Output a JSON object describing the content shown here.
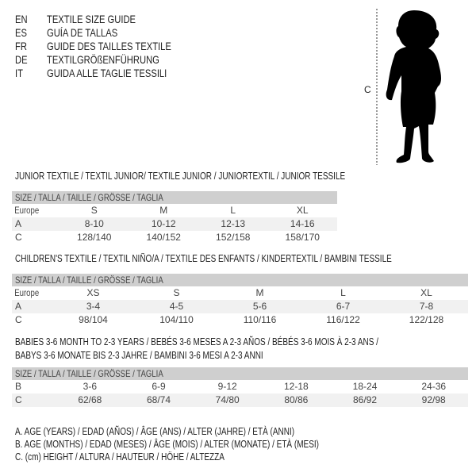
{
  "languages": [
    {
      "code": "EN",
      "name": "TEXTILE SIZE GUIDE"
    },
    {
      "code": "ES",
      "name": "GUÍA DE TALLAS"
    },
    {
      "code": "FR",
      "name": "GUIDE DES TAILLES TEXTILE"
    },
    {
      "code": "DE",
      "name": "TEXTILGRÖßENFÜHRUNG"
    },
    {
      "code": "IT",
      "name": "GUIDA ALLE TAGLIE TESSILI"
    }
  ],
  "figure": {
    "measure_label": "C"
  },
  "junior": {
    "title": "JUNIOR TEXTILE / TEXTIL JUNIOR/ TEXTILE JUNIOR / JUNIORTEXTIL / JUNIOR TESSILE",
    "header": "SIZE / TALLA / TAILLE / GRÖSSE / TAGLIA",
    "rows": [
      {
        "label": "Europe",
        "cells": [
          "S",
          "M",
          "L",
          "XL"
        ]
      },
      {
        "label": "A",
        "cells": [
          "8-10",
          "10-12",
          "12-13",
          "14-16"
        ]
      },
      {
        "label": "C",
        "cells": [
          "128/140",
          "140/152",
          "152/158",
          "158/170"
        ]
      }
    ]
  },
  "children": {
    "title": "CHILDREN'S TEXTILE / TEXTIL NIÑO/A / TEXTILE DES ENFANTS / KINDERTEXTIL / BAMBINI TESSILE",
    "header": "SIZE / TALLA / TAILLE / GRÖSSE / TAGLIA",
    "rows": [
      {
        "label": "Europe",
        "cells": [
          "XS",
          "S",
          "M",
          "L",
          "XL"
        ]
      },
      {
        "label": "A",
        "cells": [
          "3-4",
          "4-5",
          "5-6",
          "6-7",
          "7-8"
        ]
      },
      {
        "label": "C",
        "cells": [
          "98/104",
          "104/110",
          "110/116",
          "116/122",
          "122/128"
        ]
      }
    ]
  },
  "babies": {
    "title_line1": "BABIES 3-6 MONTH TO 2-3 YEARS / BEBÉS 3-6 MESES A 2-3 AÑOS / BÉBÉS 3-6 MOIS À 2-3 ANS /",
    "title_line2": "BABYS 3-6 MONATE BIS 2-3 JAHRE / BAMBINI 3-6 MESI A 2-3 ANNI",
    "header": "SIZE / TALLA / TAILLE / GRÖSSE / TAGLIA",
    "rows": [
      {
        "label": "B",
        "cells": [
          "3-6",
          "6-9",
          "9-12",
          "12-18",
          "18-24",
          "24-36"
        ]
      },
      {
        "label": "C",
        "cells": [
          "62/68",
          "68/74",
          "74/80",
          "80/86",
          "86/92",
          "92/98"
        ]
      }
    ]
  },
  "legend": [
    "A. AGE (YEARS) / EDAD (AÑOS) / ÂGE (ANS) / ALTER (JAHRE) / ETÀ (ANNI)",
    "B. AGE (MONTHS) / EDAD (MESES) / ÂGE (MOIS) / ALTER (MONATE) / ETÀ (MESI)",
    "C. (cm) HEIGHT / ALTURA / HAUTEUR / HÖHE / ALTEZZA"
  ]
}
